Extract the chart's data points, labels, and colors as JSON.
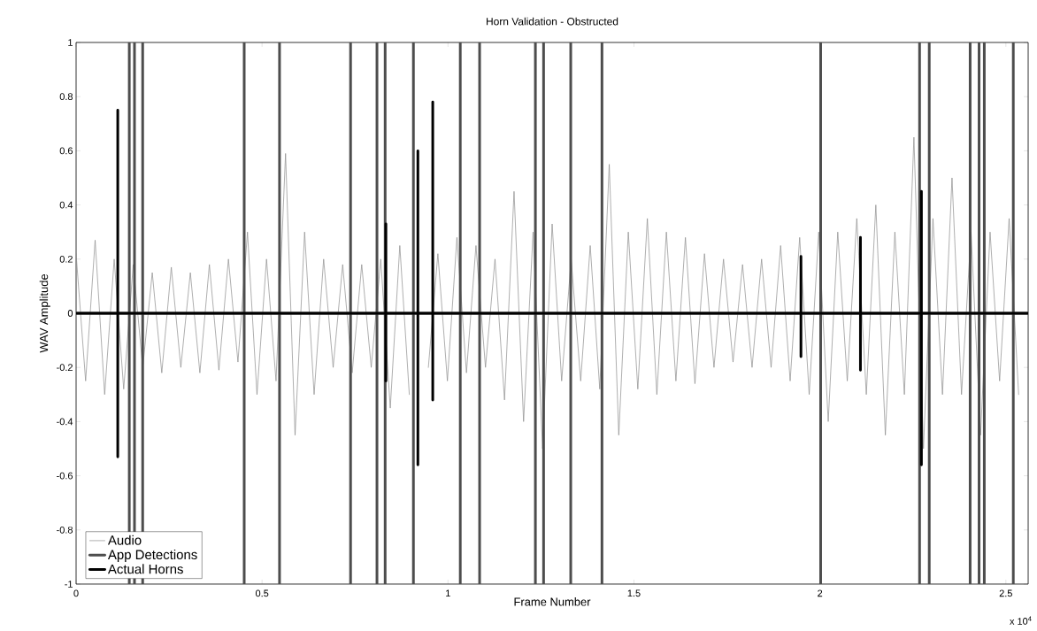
{
  "chart_data": {
    "type": "line",
    "title": "Horn Validation - Obstructed",
    "xlabel": "Frame Number",
    "ylabel": "WAV Amplitude",
    "annotations": [
      "x 10$^{4}$"
    ],
    "xlim": [
      0,
      2.56
    ],
    "ylim": [
      -1,
      1
    ],
    "xticks": [
      0,
      0.5,
      1,
      1.5,
      2,
      2.5
    ],
    "yticks": [
      -1,
      -0.8,
      -0.6,
      -0.4,
      -0.2,
      0,
      0.2,
      0.4,
      0.6,
      0.8,
      1
    ],
    "legend": "bottom left",
    "series": [
      {
        "name": "Audio",
        "color": "#8c8c8c",
        "x": [
          0,
          0.0256,
          0.0512,
          0.0768,
          0.1024,
          0.128,
          0.1536,
          0.1792,
          0.2048,
          0.2304,
          0.256,
          0.2816,
          0.3072,
          0.3328,
          0.3584,
          0.384,
          0.4096,
          0.4352,
          0.4608,
          0.4864,
          0.512,
          0.5376,
          0.5632,
          0.5888,
          0.6144,
          0.64,
          0.6656,
          0.6912,
          0.7168,
          0.7424,
          0.768,
          0.7936,
          0.8192,
          0.8448,
          0.8704,
          0.896,
          0.9216,
          0.9472,
          0.9728,
          0.9984,
          1.024,
          1.0496,
          1.0752,
          1.1008,
          1.1264,
          1.152,
          1.1776,
          1.2032,
          1.2288,
          1.2544,
          1.28,
          1.3056,
          1.3312,
          1.3568,
          1.3824,
          1.408,
          1.4336,
          1.4592,
          1.4848,
          1.5104,
          1.536,
          1.5616,
          1.5872,
          1.6128,
          1.6384,
          1.664,
          1.6896,
          1.7152,
          1.7408,
          1.7664,
          1.792,
          1.8176,
          1.8432,
          1.8688,
          1.8944,
          1.92,
          1.9456,
          1.9712,
          1.9968,
          2.0224,
          2.048,
          2.0736,
          2.0992,
          2.1248,
          2.1504,
          2.176,
          2.2016,
          2.2272,
          2.2528,
          2.2784,
          2.304,
          2.3296,
          2.3552,
          2.3808,
          2.4064,
          2.432,
          2.4576,
          2.4832,
          2.5088,
          2.5344
        ],
        "values": [
          0.22,
          -0.25,
          0.27,
          -0.3,
          0.2,
          -0.28,
          0.18,
          -0.2,
          0.15,
          -0.22,
          0.17,
          -0.2,
          0.15,
          -0.22,
          0.18,
          -0.21,
          0.2,
          -0.18,
          0.3,
          -0.3,
          0.2,
          -0.25,
          0.59,
          -0.45,
          0.3,
          -0.3,
          0.2,
          -0.2,
          0.18,
          -0.22,
          0.18,
          -0.2,
          0.2,
          -0.35,
          0.25,
          -0.3,
          null,
          -0.2,
          0.22,
          -0.25,
          0.28,
          -0.22,
          0.25,
          -0.2,
          0.2,
          -0.32,
          0.45,
          -0.4,
          0.3,
          -0.5,
          0.33,
          -0.25,
          0.2,
          -0.25,
          0.25,
          -0.28,
          0.55,
          -0.45,
          0.3,
          -0.28,
          0.35,
          -0.3,
          0.3,
          -0.25,
          0.28,
          -0.26,
          0.22,
          -0.2,
          0.2,
          -0.18,
          0.18,
          -0.2,
          0.2,
          -0.2,
          0.25,
          -0.25,
          0.28,
          -0.3,
          0.3,
          -0.4,
          0.3,
          -0.25,
          0.35,
          -0.3,
          0.4,
          -0.45,
          0.3,
          -0.3,
          0.65,
          -0.5,
          0.35,
          -0.3,
          0.5,
          -0.3,
          0.3,
          -0.45,
          0.3,
          -0.25,
          0.35,
          -0.3
        ]
      },
      {
        "name": "App Detections",
        "color": "#4d4d4d",
        "x": [
          0,
          0.143,
          0.143,
          0.143,
          0.143,
          0.157,
          0.157,
          0.157,
          0.157,
          0.179,
          0.179,
          0.179,
          0.179,
          0.452,
          0.452,
          0.452,
          0.452,
          0.547,
          0.547,
          0.547,
          0.547,
          0.738,
          0.738,
          0.738,
          0.738,
          0.809,
          0.809,
          0.809,
          0.809,
          0.831,
          0.831,
          0.831,
          0.831,
          0.907,
          0.907,
          0.907,
          0.907,
          1.033,
          1.033,
          1.033,
          1.033,
          1.085,
          1.085,
          1.085,
          1.085,
          1.235,
          1.235,
          1.235,
          1.235,
          1.257,
          1.257,
          1.257,
          1.257,
          1.33,
          1.33,
          1.33,
          1.33,
          1.414,
          1.414,
          1.414,
          1.414,
          2.002,
          2.002,
          2.002,
          2.002,
          2.268,
          2.268,
          2.268,
          2.268,
          2.294,
          2.294,
          2.294,
          2.294,
          2.404,
          2.404,
          2.404,
          2.404,
          2.428,
          2.428,
          2.428,
          2.428,
          2.442,
          2.442,
          2.442,
          2.442,
          2.52,
          2.52,
          2.52,
          2.52,
          2.56
        ],
        "values": [
          0,
          0,
          1,
          -1,
          0,
          0,
          1,
          -1,
          0,
          0,
          1,
          -1,
          0,
          0,
          1,
          -1,
          0,
          0,
          1,
          -1,
          0,
          0,
          1,
          -1,
          0,
          0,
          1,
          -1,
          0,
          0,
          1,
          -1,
          0,
          0,
          1,
          -1,
          0,
          0,
          1,
          -1,
          0,
          0,
          1,
          -1,
          0,
          0,
          1,
          -1,
          0,
          0,
          1,
          -1,
          0,
          0,
          1,
          -1,
          0,
          0,
          1,
          -1,
          0,
          0,
          1,
          -1,
          0,
          0,
          1,
          -1,
          0,
          0,
          1,
          -1,
          0,
          0,
          1,
          -1,
          0,
          0,
          1,
          -1,
          0,
          0,
          1,
          -1,
          0,
          0,
          1,
          -1,
          0,
          0
        ]
      },
      {
        "name": "Actual Horns",
        "color": "#000000",
        "x": [
          0,
          0.112,
          0.112,
          0.112,
          0.112,
          0.833,
          0.833,
          0.833,
          0.833,
          0.919,
          0.919,
          0.919,
          0.919,
          0.959,
          0.959,
          0.959,
          0.959,
          1.949,
          1.949,
          1.949,
          1.949,
          2.109,
          2.109,
          2.109,
          2.109,
          2.273,
          2.273,
          2.273,
          2.273,
          2.56
        ],
        "values": [
          0,
          0,
          0.75,
          -0.53,
          0,
          0,
          0.33,
          -0.25,
          0,
          0,
          0.6,
          -0.56,
          0,
          0,
          0.78,
          -0.32,
          0,
          0,
          0.21,
          -0.16,
          0,
          0,
          0.28,
          -0.21,
          0,
          0,
          0.45,
          -0.56,
          0,
          0
        ]
      }
    ]
  }
}
